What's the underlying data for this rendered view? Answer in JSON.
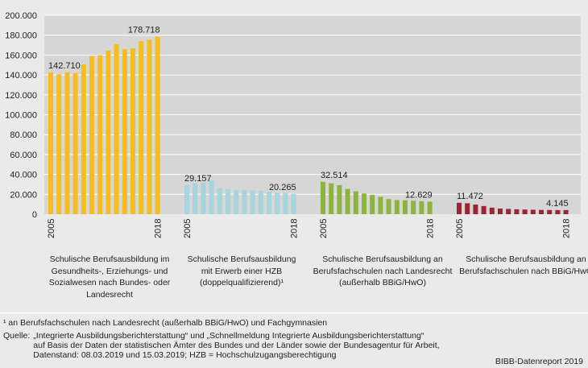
{
  "chart_data": {
    "type": "bar",
    "ylim": [
      0,
      200000
    ],
    "yticks": [
      "0",
      "20.000",
      "40.000",
      "60.000",
      "80.000",
      "100.000",
      "120.000",
      "140.000",
      "160.000",
      "180.000",
      "200.000"
    ],
    "ytick_values": [
      0,
      20000,
      40000,
      60000,
      80000,
      100000,
      120000,
      140000,
      160000,
      180000,
      200000
    ],
    "groups": [
      {
        "name": "gesundheit",
        "title": [
          "Schulische Berufsausbildung im",
          "Gesundheits-, Erziehungs- und",
          "Sozialwesen nach Bundes- oder",
          "Landesrecht"
        ],
        "color": "#f5be1e",
        "start_label": "2005",
        "end_label": "2018",
        "first_value_label": "142.710",
        "last_value_label": "178.718",
        "values": [
          142710,
          140500,
          142800,
          141900,
          150500,
          159000,
          160000,
          164500,
          171000,
          166000,
          166800,
          174000,
          175500,
          178718
        ]
      },
      {
        "name": "hzb",
        "title": [
          "Schulische Berufsausbildung",
          "mit Erwerb einer HZB",
          "(doppelqualifizierend)¹"
        ],
        "color": "#a7d4dd",
        "start_label": "2005",
        "end_label": "2018",
        "first_value_label": "29.157",
        "last_value_label": "20.265",
        "values": [
          29157,
          31000,
          32000,
          34000,
          26500,
          25200,
          24300,
          24000,
          23800,
          23600,
          22600,
          21500,
          21200,
          20265
        ]
      },
      {
        "name": "landesrecht",
        "title": [
          "Schulische Berufsausbildung an",
          "Berufsfachschulen nach Landesrecht",
          "(außerhalb BBiG/HwO)"
        ],
        "color": "#8db43e",
        "start_label": "2005",
        "end_label": "2018",
        "first_value_label": "32.514",
        "last_value_label": "12.629",
        "values": [
          32514,
          31000,
          29200,
          25500,
          23000,
          20800,
          19500,
          17500,
          15200,
          14300,
          14000,
          13500,
          13000,
          12629
        ]
      },
      {
        "name": "bbig",
        "title": [
          "Schulische Berufsausbildung an",
          "Berufsfachschulen nach BBiG/HwO"
        ],
        "color": "#9b2532",
        "start_label": "2005",
        "end_label": "2018",
        "first_value_label": "11.472",
        "last_value_label": "4.145",
        "values": [
          11472,
          11000,
          9700,
          8200,
          6600,
          5700,
          5300,
          4900,
          4700,
          4500,
          4300,
          4200,
          4150,
          4145
        ]
      }
    ]
  },
  "footnote": "¹ an Berufsfachschulen nach Landesrecht (außerhalb BBiG/HwO) und Fachgymnasien",
  "source_label": "Quelle:",
  "source_lines": [
    "„Integrierte Ausbildungsberichterstattung“ und „Schnellmeldung Integrierte Ausbildungsberichterstattung“",
    "auf Basis der Daten der statistischen Ämter des Bundes und der Länder sowie der Bundesagentur für Arbeit,",
    "Datenstand: 08.03.2019 und 15.03.2019; HZB = Hochschulzugangsberechtigung"
  ],
  "credit": "BIBB-Datenreport 2019"
}
